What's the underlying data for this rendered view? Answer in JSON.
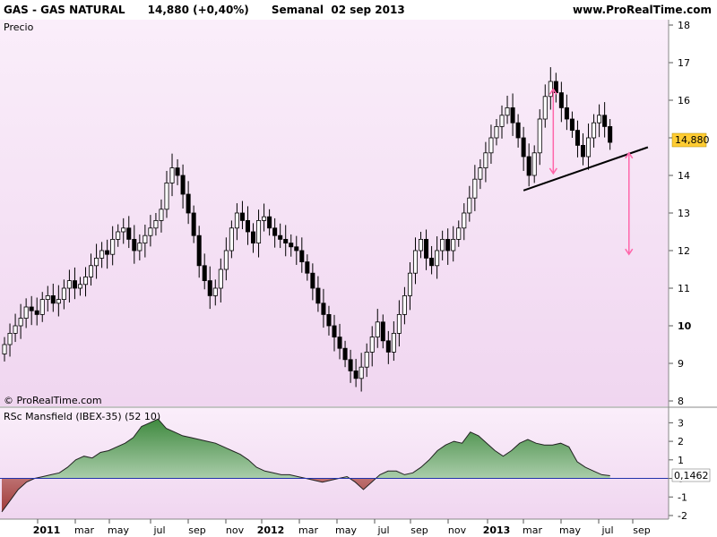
{
  "header": {
    "instrument": "GAS - GAS NATURAL",
    "quote": "14,880 (+0,40%)",
    "period": "Semanal",
    "date": "02 sep 2013",
    "source": "www.ProRealTime.com"
  },
  "colors": {
    "background_top": "#f8eaf8",
    "background_bottom": "#f0d4f0",
    "candle_up": "#ffffff",
    "candle_down": "#000000",
    "arrow": "#ff66aa",
    "trendline": "#000000",
    "rs_positive_top": "#4a8c4a",
    "rs_positive_bottom": "#d8ecd8",
    "rs_negative": "#a04040",
    "zero_line": "#2233aa",
    "price_badge": "#ffcc33"
  },
  "chart_data": [
    {
      "type": "candlestick",
      "title": "Precio",
      "ylabel": "",
      "ylim": [
        8,
        18
      ],
      "y_ticks": [
        8,
        9,
        10,
        11,
        12,
        13,
        14,
        15,
        16,
        17,
        18
      ],
      "y_tick_labels": [
        "8",
        "9",
        "10",
        "11",
        "12",
        "13",
        "14",
        "15",
        "16",
        "17",
        "18"
      ],
      "x_tick_labels": [
        "2011",
        "mar",
        "may",
        "jul",
        "sep",
        "nov",
        "2012",
        "mar",
        "may",
        "jul",
        "sep",
        "nov",
        "2013",
        "mar",
        "may",
        "jul",
        "sep"
      ],
      "last_price_label": "14,880",
      "copyright": "© ProRealTime.com",
      "series": [
        {
          "name": "",
          "close": [
            9.5,
            9.8,
            10.0,
            10.2,
            10.5,
            10.4,
            10.3,
            10.7,
            10.8,
            10.6,
            10.7,
            11.0,
            11.2,
            11.0,
            11.1,
            11.3,
            11.6,
            11.8,
            12.0,
            11.9,
            12.3,
            12.5,
            12.6,
            12.3,
            12.0,
            12.2,
            12.4,
            12.6,
            12.8,
            13.1,
            13.8,
            14.2,
            14.0,
            13.5,
            13.0,
            12.4,
            11.6,
            11.2,
            10.8,
            11.0,
            11.5,
            12.0,
            12.6,
            13.0,
            12.8,
            12.5,
            12.2,
            12.8,
            12.9,
            12.6,
            12.4,
            12.3,
            12.2,
            12.1,
            12.0,
            11.7,
            11.4,
            11.0,
            10.6,
            10.3,
            10.0,
            9.7,
            9.4,
            9.1,
            8.8,
            8.6,
            8.9,
            9.3,
            9.7,
            10.1,
            9.6,
            9.3,
            9.8,
            10.3,
            10.8,
            11.4,
            12.0,
            12.3,
            11.8,
            11.6,
            12.0,
            12.3,
            12.0,
            12.3,
            12.6,
            13.0,
            13.4,
            13.9,
            14.2,
            14.6,
            15.0,
            15.3,
            15.6,
            15.8,
            15.4,
            15.0,
            14.5,
            14.0,
            14.6,
            15.5,
            16.1,
            16.5,
            16.2,
            15.8,
            15.5,
            15.2,
            14.8,
            14.5,
            15.0,
            15.4,
            15.6,
            15.3,
            14.88
          ]
        }
      ],
      "annotations": [
        {
          "type": "trendline",
          "from": {
            "week": 96,
            "price": 13.6
          },
          "to": {
            "week": 119,
            "price": 14.75
          }
        },
        {
          "type": "arrow",
          "at_week": 101.5,
          "from_price": 16.3,
          "to_price": 14.05
        },
        {
          "type": "arrow",
          "at_week": 115.5,
          "from_price": 14.6,
          "to_price": 11.9
        }
      ]
    },
    {
      "type": "area",
      "title": "RSc Mansfield (IBEX-35) (52 10)",
      "ylim": [
        -2,
        3.5
      ],
      "y_ticks": [
        -2,
        -1,
        0,
        1,
        2,
        3
      ],
      "y_tick_labels": [
        "-2",
        "-1",
        "0",
        "1",
        "2",
        "3"
      ],
      "last_value_label": "0,1462",
      "series": [
        {
          "name": "",
          "values": [
            -1.8,
            -1.2,
            -0.6,
            -0.2,
            0.0,
            0.1,
            0.2,
            0.3,
            0.6,
            1.0,
            1.2,
            1.1,
            1.4,
            1.5,
            1.7,
            1.9,
            2.2,
            2.8,
            3.0,
            3.2,
            2.7,
            2.5,
            2.3,
            2.2,
            2.1,
            2.0,
            1.9,
            1.7,
            1.5,
            1.3,
            1.0,
            0.6,
            0.4,
            0.3,
            0.2,
            0.2,
            0.1,
            0.0,
            -0.1,
            -0.2,
            -0.1,
            0.0,
            0.1,
            -0.2,
            -0.6,
            -0.2,
            0.2,
            0.4,
            0.4,
            0.2,
            0.3,
            0.6,
            1.0,
            1.5,
            1.8,
            2.0,
            1.9,
            2.5,
            2.3,
            1.9,
            1.5,
            1.2,
            1.5,
            1.9,
            2.1,
            1.9,
            1.8,
            1.8,
            1.9,
            1.7,
            0.9,
            0.6,
            0.4,
            0.2,
            0.1462
          ]
        }
      ]
    }
  ]
}
